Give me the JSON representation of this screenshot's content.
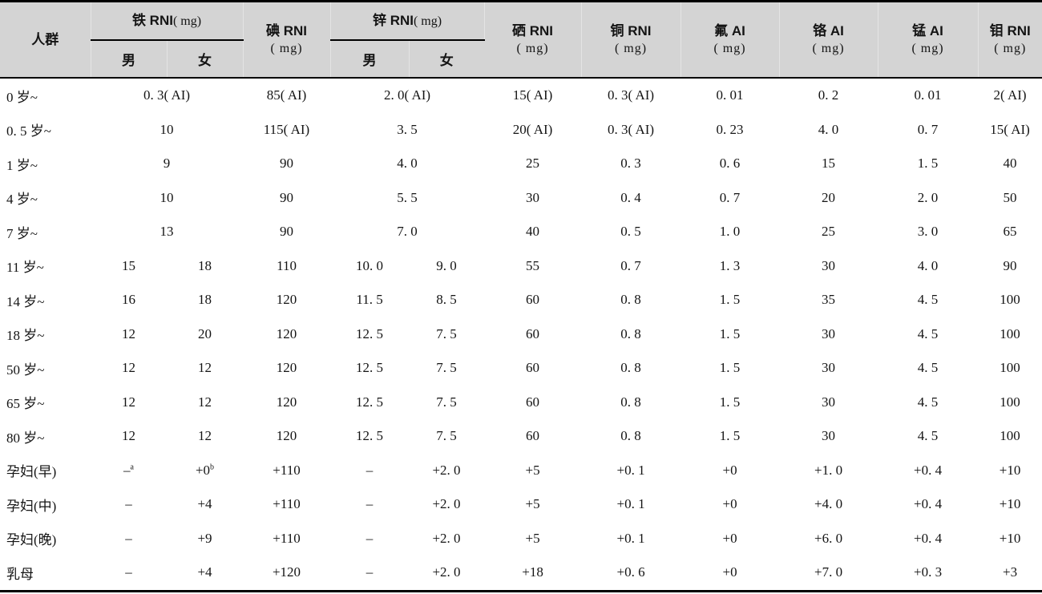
{
  "table": {
    "header": {
      "population": "人群",
      "male": "男",
      "female": "女",
      "iron": {
        "title": "铁 RNI",
        "unit": "( mg)"
      },
      "iodine": {
        "title": "碘 RNI",
        "unit": "( mg)"
      },
      "zinc": {
        "title": "锌 RNI",
        "unit": "( mg)"
      },
      "selenium": {
        "title": "硒 RNI",
        "unit": "( mg)"
      },
      "copper": {
        "title": "铜 RNI",
        "unit": "( mg)"
      },
      "fluorine": {
        "title": "氟 AI",
        "unit": "( mg)"
      },
      "chromium": {
        "title": "铬 AI",
        "unit": "( mg)"
      },
      "manganese": {
        "title": "锰 AI",
        "unit": "( mg)"
      },
      "molybdenum": {
        "title": "钼 RNI",
        "unit": "( mg)"
      }
    },
    "rows": [
      {
        "cells": [
          {
            "t": "0 岁~"
          },
          {
            "t": "0. 3( AI)",
            "span": 2
          },
          {
            "t": "85( AI)"
          },
          {
            "t": "2. 0( AI)",
            "span": 2
          },
          {
            "t": "15( AI)"
          },
          {
            "t": "0. 3( AI)"
          },
          {
            "t": "0. 01"
          },
          {
            "t": "0. 2"
          },
          {
            "t": "0. 01"
          },
          {
            "t": "2( AI)"
          }
        ]
      },
      {
        "cells": [
          {
            "t": "0. 5 岁~"
          },
          {
            "t": "10",
            "span": 2
          },
          {
            "t": "115( AI)"
          },
          {
            "t": "3. 5",
            "span": 2
          },
          {
            "t": "20( AI)"
          },
          {
            "t": "0. 3( AI)"
          },
          {
            "t": "0. 23"
          },
          {
            "t": "4. 0"
          },
          {
            "t": "0. 7"
          },
          {
            "t": "15( AI)"
          }
        ]
      },
      {
        "cells": [
          {
            "t": "1 岁~"
          },
          {
            "t": "9",
            "span": 2
          },
          {
            "t": "90"
          },
          {
            "t": "4. 0",
            "span": 2
          },
          {
            "t": "25"
          },
          {
            "t": "0. 3"
          },
          {
            "t": "0. 6"
          },
          {
            "t": "15"
          },
          {
            "t": "1. 5"
          },
          {
            "t": "40"
          }
        ]
      },
      {
        "cells": [
          {
            "t": "4 岁~"
          },
          {
            "t": "10",
            "span": 2
          },
          {
            "t": "90"
          },
          {
            "t": "5. 5",
            "span": 2
          },
          {
            "t": "30"
          },
          {
            "t": "0. 4"
          },
          {
            "t": "0. 7"
          },
          {
            "t": "20"
          },
          {
            "t": "2. 0"
          },
          {
            "t": "50"
          }
        ]
      },
      {
        "cells": [
          {
            "t": "7 岁~"
          },
          {
            "t": "13",
            "span": 2
          },
          {
            "t": "90"
          },
          {
            "t": "7. 0",
            "span": 2
          },
          {
            "t": "40"
          },
          {
            "t": "0. 5"
          },
          {
            "t": "1. 0"
          },
          {
            "t": "25"
          },
          {
            "t": "3. 0"
          },
          {
            "t": "65"
          }
        ]
      },
      {
        "cells": [
          {
            "t": "11 岁~"
          },
          {
            "t": "15"
          },
          {
            "t": "18"
          },
          {
            "t": "110"
          },
          {
            "t": "10. 0"
          },
          {
            "t": "9. 0"
          },
          {
            "t": "55"
          },
          {
            "t": "0. 7"
          },
          {
            "t": "1. 3"
          },
          {
            "t": "30"
          },
          {
            "t": "4. 0"
          },
          {
            "t": "90"
          }
        ]
      },
      {
        "cells": [
          {
            "t": "14 岁~"
          },
          {
            "t": "16"
          },
          {
            "t": "18"
          },
          {
            "t": "120"
          },
          {
            "t": "11. 5"
          },
          {
            "t": "8. 5"
          },
          {
            "t": "60"
          },
          {
            "t": "0. 8"
          },
          {
            "t": "1. 5"
          },
          {
            "t": "35"
          },
          {
            "t": "4. 5"
          },
          {
            "t": "100"
          }
        ]
      },
      {
        "cells": [
          {
            "t": "18 岁~"
          },
          {
            "t": "12"
          },
          {
            "t": "20"
          },
          {
            "t": "120"
          },
          {
            "t": "12. 5"
          },
          {
            "t": "7. 5"
          },
          {
            "t": "60"
          },
          {
            "t": "0. 8"
          },
          {
            "t": "1. 5"
          },
          {
            "t": "30"
          },
          {
            "t": "4. 5"
          },
          {
            "t": "100"
          }
        ]
      },
      {
        "cells": [
          {
            "t": "50 岁~"
          },
          {
            "t": "12"
          },
          {
            "t": "12"
          },
          {
            "t": "120"
          },
          {
            "t": "12. 5"
          },
          {
            "t": "7. 5"
          },
          {
            "t": "60"
          },
          {
            "t": "0. 8"
          },
          {
            "t": "1. 5"
          },
          {
            "t": "30"
          },
          {
            "t": "4. 5"
          },
          {
            "t": "100"
          }
        ]
      },
      {
        "cells": [
          {
            "t": "65 岁~"
          },
          {
            "t": "12"
          },
          {
            "t": "12"
          },
          {
            "t": "120"
          },
          {
            "t": "12. 5"
          },
          {
            "t": "7. 5"
          },
          {
            "t": "60"
          },
          {
            "t": "0. 8"
          },
          {
            "t": "1. 5"
          },
          {
            "t": "30"
          },
          {
            "t": "4. 5"
          },
          {
            "t": "100"
          }
        ]
      },
      {
        "cells": [
          {
            "t": "80 岁~"
          },
          {
            "t": "12"
          },
          {
            "t": "12"
          },
          {
            "t": "120"
          },
          {
            "t": "12. 5"
          },
          {
            "t": "7. 5"
          },
          {
            "t": "60"
          },
          {
            "t": "0. 8"
          },
          {
            "t": "1. 5"
          },
          {
            "t": "30"
          },
          {
            "t": "4. 5"
          },
          {
            "t": "100"
          }
        ]
      },
      {
        "cells": [
          {
            "t": "孕妇(早)"
          },
          {
            "t": "–",
            "sup": "a"
          },
          {
            "t": "+0",
            "sup": "b"
          },
          {
            "t": "+110"
          },
          {
            "t": "–"
          },
          {
            "t": "+2. 0"
          },
          {
            "t": "+5"
          },
          {
            "t": "+0. 1"
          },
          {
            "t": "+0"
          },
          {
            "t": "+1. 0"
          },
          {
            "t": "+0. 4"
          },
          {
            "t": "+10"
          }
        ]
      },
      {
        "cells": [
          {
            "t": "孕妇(中)"
          },
          {
            "t": "–"
          },
          {
            "t": "+4"
          },
          {
            "t": "+110"
          },
          {
            "t": "–"
          },
          {
            "t": "+2. 0"
          },
          {
            "t": "+5"
          },
          {
            "t": "+0. 1"
          },
          {
            "t": "+0"
          },
          {
            "t": "+4. 0"
          },
          {
            "t": "+0. 4"
          },
          {
            "t": "+10"
          }
        ]
      },
      {
        "cells": [
          {
            "t": "孕妇(晚)"
          },
          {
            "t": "–"
          },
          {
            "t": "+9"
          },
          {
            "t": "+110"
          },
          {
            "t": "–"
          },
          {
            "t": "+2. 0"
          },
          {
            "t": "+5"
          },
          {
            "t": "+0. 1"
          },
          {
            "t": "+0"
          },
          {
            "t": "+6. 0"
          },
          {
            "t": "+0. 4"
          },
          {
            "t": "+10"
          }
        ]
      },
      {
        "cells": [
          {
            "t": "乳母"
          },
          {
            "t": "–"
          },
          {
            "t": "+4"
          },
          {
            "t": "+120"
          },
          {
            "t": "–"
          },
          {
            "t": "+2. 0"
          },
          {
            "t": "+18"
          },
          {
            "t": "+0. 6"
          },
          {
            "t": "+0"
          },
          {
            "t": "+7. 0"
          },
          {
            "t": "+0. 3"
          },
          {
            "t": "+3"
          }
        ]
      }
    ]
  }
}
